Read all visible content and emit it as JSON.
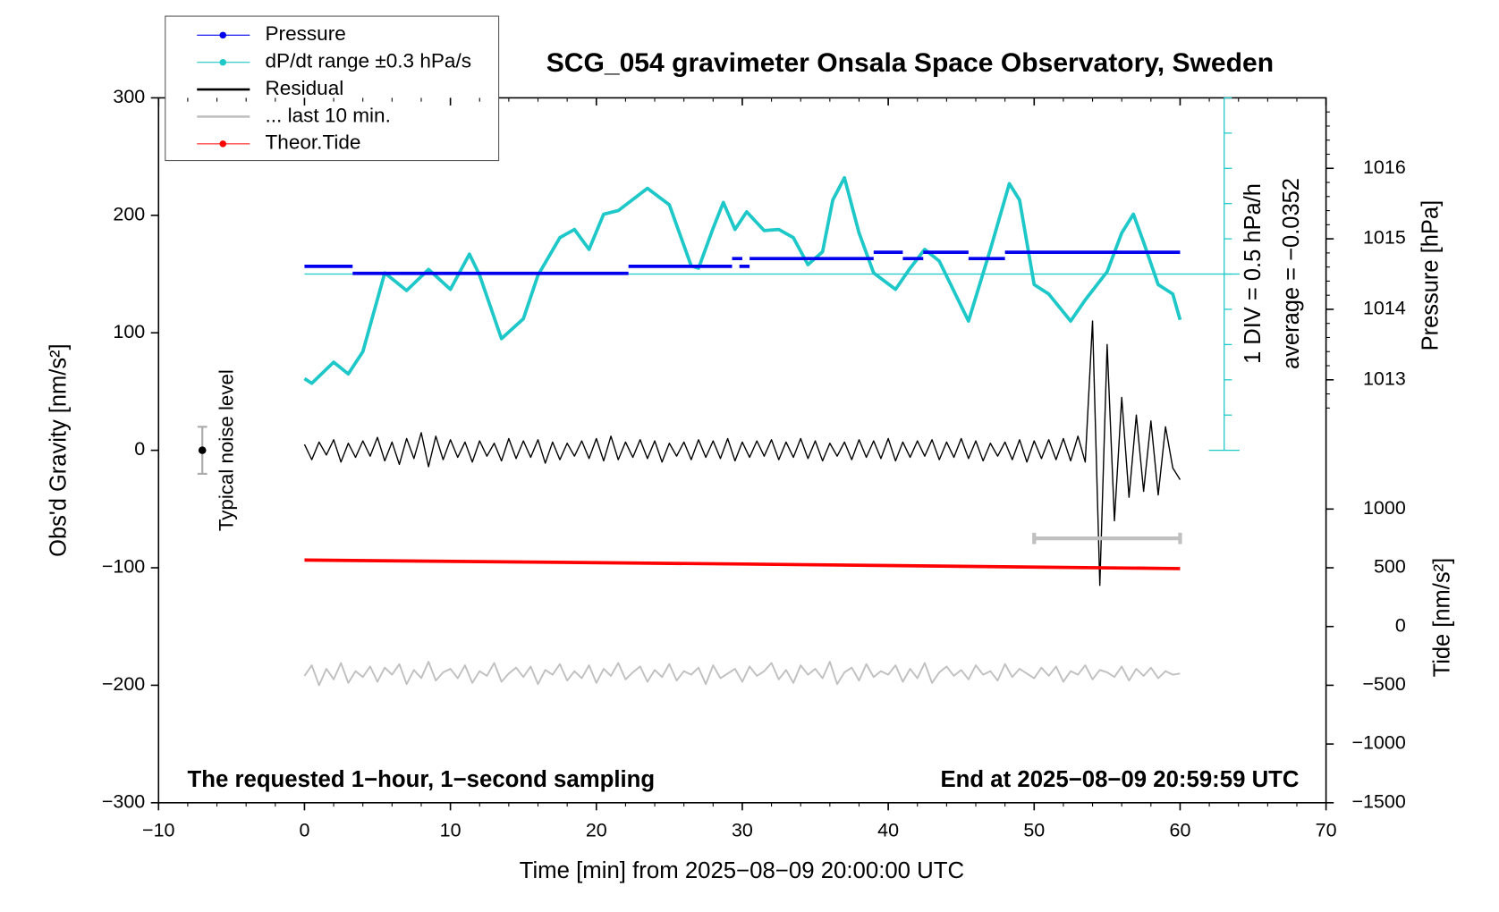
{
  "chart_data": {
    "type": "line",
    "title": "SCG_054 gravimeter Onsala Space Observatory, Sweden",
    "x_label": "Time [min] from 2025−08−09 20:00:00 UTC",
    "y_label": "Obs'd Gravity [nm/s²]",
    "y2_label": "Pressure [hPa]",
    "y3_label": "Tide [nm/s²]",
    "annotations": {
      "left": "The requested 1−hour, 1−second sampling",
      "right": "End at 2025−08−09 20:59:59 UTC",
      "div": "1 DIV = 0.5 hPa/h",
      "average": "average = −0.0352",
      "noise": "Typical noise level"
    },
    "xlim": [
      -10,
      70
    ],
    "xticks": [
      {
        "value": -10,
        "label": "−10"
      },
      0,
      10,
      20,
      30,
      40,
      50,
      60,
      70
    ],
    "ylim": [
      -300,
      300
    ],
    "yticks": [
      {
        "value": -300,
        "label": "−300"
      },
      {
        "value": -200,
        "label": "−200"
      },
      {
        "value": -100,
        "label": "−100"
      },
      0,
      100,
      200,
      300
    ],
    "y2lim": [
      1007,
      1017
    ],
    "y2ticks": [
      1013,
      1014,
      1015,
      1016
    ],
    "y3lim": [
      -1500,
      4500
    ],
    "y3ticks": [
      {
        "value": -1500,
        "label": "−1500"
      },
      {
        "value": -1000,
        "label": "−1000"
      },
      {
        "value": -500,
        "label": "−500"
      },
      0,
      500,
      1000
    ],
    "noise_level": {
      "x": -7,
      "value": 0,
      "error": 20
    },
    "average_line": 150,
    "last10_window": {
      "x": [
        50,
        60
      ],
      "y": -75
    },
    "series": [
      {
        "name": "Pressure",
        "color": "#0000ee",
        "axis": "y2",
        "marker": true,
        "width": 3.5,
        "x": [
          0,
          3.3,
          null,
          3.3,
          22.2,
          null,
          22.2,
          29.3,
          null,
          29.3,
          30,
          null,
          29.8,
          30.5,
          null,
          30.5,
          39,
          null,
          39,
          41,
          null,
          41,
          42.4,
          null,
          42.4,
          45.5,
          null,
          45.5,
          48,
          null,
          48,
          60
        ],
        "values": [
          1014.61,
          1014.61,
          null,
          1014.51,
          1014.51,
          null,
          1014.61,
          1014.61,
          null,
          1014.72,
          1014.72,
          null,
          1014.61,
          1014.61,
          null,
          1014.72,
          1014.72,
          null,
          1014.81,
          1014.81,
          null,
          1014.72,
          1014.72,
          null,
          1014.81,
          1014.81,
          null,
          1014.72,
          1014.72,
          null,
          1014.81,
          1014.81
        ]
      },
      {
        "name": "dP/dt range ±0.3 hPa/s",
        "color": "#1fc8c8",
        "marker": true,
        "width": 3.5,
        "x": [
          0,
          0.5,
          2,
          3,
          4,
          5.5,
          7,
          8.5,
          10,
          11.3,
          12,
          13.5,
          15,
          16,
          17.5,
          18.5,
          19.5,
          20.5,
          21.5,
          23.5,
          25,
          26.5,
          27,
          28,
          28.7,
          29.5,
          30.3,
          31.5,
          32.5,
          33.5,
          34.5,
          35.5,
          36.2,
          37,
          38,
          39,
          40.5,
          41.5,
          42.5,
          43.5,
          45.5,
          47,
          48.3,
          49,
          50,
          51,
          52.5,
          53.5,
          55,
          56,
          56.8,
          57.5,
          58.5,
          59.5,
          60
        ],
        "values": [
          61,
          57,
          75,
          65,
          84,
          151,
          136,
          154,
          137,
          167,
          149,
          95,
          112,
          149,
          181,
          188,
          171,
          201,
          204,
          223,
          209,
          157,
          155,
          189,
          211,
          188,
          203,
          187,
          188,
          181,
          158,
          169,
          213,
          232,
          185,
          151,
          137,
          155,
          171,
          161,
          110,
          171,
          227,
          213,
          141,
          133,
          110,
          128,
          152,
          185,
          201,
          177,
          141,
          133,
          111
        ]
      },
      {
        "name": "Residual",
        "color": "#000000",
        "marker": false,
        "width": 1.3,
        "x": [
          0,
          0.5,
          1,
          1.5,
          2,
          2.5,
          3,
          3.5,
          4,
          4.5,
          5,
          5.5,
          6,
          6.5,
          7,
          7.5,
          8,
          8.5,
          9,
          9.5,
          10,
          10.5,
          11,
          11.5,
          12,
          12.5,
          13,
          13.5,
          14,
          14.5,
          15,
          15.5,
          16,
          16.5,
          17,
          17.5,
          18,
          18.5,
          19,
          19.5,
          20,
          20.5,
          21,
          21.5,
          22,
          22.5,
          23,
          23.5,
          24,
          24.5,
          25,
          25.5,
          26,
          26.5,
          27,
          27.5,
          28,
          28.5,
          29,
          29.5,
          30,
          30.5,
          31,
          31.5,
          32,
          32.5,
          33,
          33.5,
          34,
          34.5,
          35,
          35.5,
          36,
          36.5,
          37,
          37.5,
          38,
          38.5,
          39,
          39.5,
          40,
          40.5,
          41,
          41.5,
          42,
          42.5,
          43,
          43.5,
          44,
          44.5,
          45,
          45.5,
          46,
          46.5,
          47,
          47.5,
          48,
          48.5,
          49,
          49.5,
          50,
          50.5,
          51,
          51.5,
          52,
          52.5,
          53,
          53.5,
          54,
          54.5,
          55,
          55.5,
          56,
          56.5,
          57,
          57.5,
          58,
          58.5,
          59,
          59.5,
          60
        ],
        "values": [
          5,
          -8,
          7,
          -4,
          9,
          -10,
          6,
          -6,
          8,
          -5,
          11,
          -9,
          7,
          -12,
          10,
          -7,
          15,
          -14,
          12,
          -8,
          9,
          -6,
          7,
          -10,
          8,
          -5,
          6,
          -9,
          10,
          -7,
          8,
          -6,
          9,
          -11,
          7,
          -8,
          6,
          -5,
          8,
          -7,
          10,
          -9,
          12,
          -8,
          7,
          -6,
          9,
          -7,
          8,
          -10,
          6,
          -5,
          7,
          -8,
          9,
          -6,
          8,
          -7,
          10,
          -9,
          7,
          -6,
          8,
          -5,
          9,
          -8,
          7,
          -6,
          10,
          -7,
          8,
          -9,
          6,
          -5,
          7,
          -8,
          9,
          -6,
          8,
          -7,
          10,
          -9,
          7,
          -6,
          8,
          -5,
          9,
          -8,
          7,
          -6,
          10,
          -7,
          8,
          -9,
          6,
          -5,
          7,
          -8,
          9,
          -10,
          8,
          -7,
          9,
          -8,
          10,
          -9,
          12,
          -10,
          110,
          -115,
          90,
          -60,
          45,
          -40,
          30,
          -35,
          25,
          -38,
          20,
          -15,
          -25
        ]
      },
      {
        "name": "... last 10 min.",
        "color": "#c0c0c0",
        "marker": false,
        "width": 1.8,
        "x": [
          0,
          0.5,
          1,
          1.5,
          2,
          2.5,
          3,
          3.5,
          4,
          4.5,
          5,
          5.5,
          6,
          6.5,
          7,
          7.5,
          8,
          8.5,
          9,
          9.5,
          10,
          10.5,
          11,
          11.5,
          12,
          12.5,
          13,
          13.5,
          14,
          14.5,
          15,
          15.5,
          16,
          16.5,
          17,
          17.5,
          18,
          18.5,
          19,
          19.5,
          20,
          20.5,
          21,
          21.5,
          22,
          22.5,
          23,
          23.5,
          24,
          24.5,
          25,
          25.5,
          26,
          26.5,
          27,
          27.5,
          28,
          28.5,
          29,
          29.5,
          30,
          30.5,
          31,
          31.5,
          32,
          32.5,
          33,
          33.5,
          34,
          34.5,
          35,
          35.5,
          36,
          36.5,
          37,
          37.5,
          38,
          38.5,
          39,
          39.5,
          40,
          40.5,
          41,
          41.5,
          42,
          42.5,
          43,
          43.5,
          44,
          44.5,
          45,
          45.5,
          46,
          46.5,
          47,
          47.5,
          48,
          48.5,
          49,
          49.5,
          50,
          50.5,
          51,
          51.5,
          52,
          52.5,
          53,
          53.5,
          54,
          54.5,
          55,
          55.5,
          56,
          56.5,
          57,
          57.5,
          58,
          58.5,
          59,
          59.5,
          60
        ],
        "values": [
          -192,
          -183,
          -200,
          -186,
          -195,
          -181,
          -198,
          -188,
          -193,
          -184,
          -197,
          -185,
          -191,
          -182,
          -199,
          -187,
          -194,
          -180,
          -196,
          -189,
          -186,
          -194,
          -183,
          -198,
          -188,
          -192,
          -181,
          -197,
          -190,
          -185,
          -193,
          -184,
          -199,
          -187,
          -191,
          -182,
          -196,
          -188,
          -194,
          -183,
          -198,
          -186,
          -192,
          -181,
          -195,
          -189,
          -184,
          -197,
          -187,
          -193,
          -182,
          -196,
          -188,
          -191,
          -185,
          -199,
          -183,
          -194,
          -190,
          -186,
          -197,
          -184,
          -192,
          -188,
          -181,
          -195,
          -187,
          -198,
          -183,
          -191,
          -186,
          -194,
          -180,
          -199,
          -189,
          -185,
          -196,
          -182,
          -193,
          -188,
          -191,
          -183,
          -197,
          -186,
          -194,
          -181,
          -198,
          -189,
          -184,
          -192,
          -187,
          -195,
          -183,
          -191,
          -188,
          -196,
          -182,
          -193,
          -186,
          -190,
          -194,
          -185,
          -192,
          -184,
          -197,
          -188,
          -191,
          -183,
          -195,
          -187,
          -189,
          -193,
          -184,
          -196,
          -186,
          -192,
          -185,
          -194,
          -188,
          -191,
          -190
        ]
      },
      {
        "name": "Theor.Tide",
        "color": "#ff0000",
        "axis": "y3",
        "marker": true,
        "width": 3.5,
        "x": [
          0,
          30,
          60
        ],
        "values": [
          566,
          532,
          493
        ]
      }
    ]
  }
}
